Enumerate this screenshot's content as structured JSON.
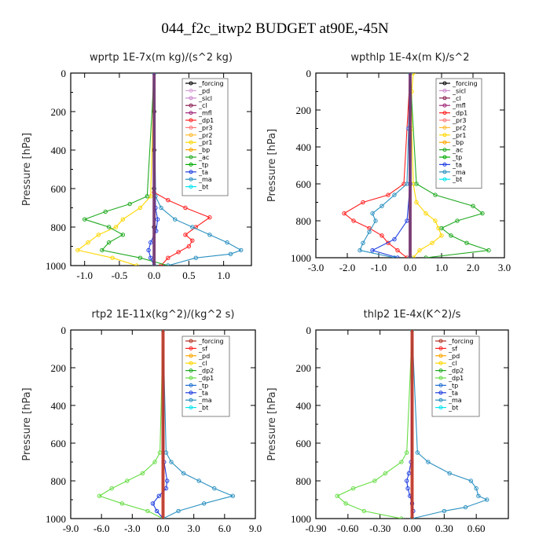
{
  "figure_title": "044_f2c_itwp2  BUDGET at90E,-45N",
  "chart_data": [
    {
      "type": "line",
      "title": "wprtp  1E-7x(m kg)/(s^2 kg)",
      "ylabel": "Pressure [hPa]",
      "xlim": [
        -1.2,
        1.4
      ],
      "ylim": [
        0,
        1000
      ],
      "xticks": [
        -1.0,
        -0.5,
        0.0,
        0.5,
        1.0
      ],
      "xtick_labels": [
        "-1.0",
        "-0.5",
        "0.0",
        "0.5",
        "1.0"
      ],
      "yticks": [
        0,
        200,
        400,
        600,
        800,
        1000
      ],
      "ytick_labels": [
        "0",
        "200",
        "400",
        "600",
        "800",
        "1000"
      ],
      "series": [
        {
          "name": "_forcing",
          "color": "#000000",
          "p": [
            0,
            200,
            400,
            600,
            800,
            1000
          ],
          "x": [
            0,
            0,
            0,
            0,
            0,
            0
          ]
        },
        {
          "name": "_pd",
          "color": "#d8a0d8",
          "p": [
            0,
            500,
            1000
          ],
          "x": [
            0,
            0,
            0
          ]
        },
        {
          "name": "_sicl",
          "color": "#cc88cc",
          "p": [
            0,
            500,
            1000
          ],
          "x": [
            0,
            0,
            0
          ]
        },
        {
          "name": "_cl",
          "color": "#8b2252",
          "p": [
            0,
            500,
            1000
          ],
          "x": [
            0,
            0,
            0
          ]
        },
        {
          "name": "_mfl",
          "color": "#a0287a",
          "p": [
            0,
            500,
            1000
          ],
          "x": [
            0,
            0,
            0
          ]
        },
        {
          "name": "_dp1",
          "color": "#ff2020",
          "p": [
            0,
            620,
            660,
            700,
            750,
            800,
            840,
            870,
            900,
            930,
            960,
            1000
          ],
          "x": [
            0,
            0,
            0.2,
            0.45,
            0.8,
            0.6,
            0.45,
            0.55,
            0.5,
            0.35,
            0.2,
            0.1
          ]
        },
        {
          "name": "_pr3",
          "color": "#ff7777",
          "p": [
            0,
            1000
          ],
          "x": [
            0,
            0
          ]
        },
        {
          "name": "_pr2",
          "color": "#ffbb33",
          "p": [
            0,
            1000
          ],
          "x": [
            0,
            0
          ]
        },
        {
          "name": "_pr1",
          "color": "#ffd700",
          "p": [
            0,
            640,
            700,
            760,
            800,
            840,
            880,
            920,
            960,
            1000
          ],
          "x": [
            0,
            -0.05,
            -0.2,
            -0.45,
            -0.55,
            -0.8,
            -0.95,
            -1.1,
            -0.6,
            -0.25
          ]
        },
        {
          "name": "_bp",
          "color": "#ffa500",
          "p": [
            0,
            1000
          ],
          "x": [
            0,
            0
          ]
        },
        {
          "name": "_ac",
          "color": "#22aa22",
          "p": [
            0,
            640,
            680,
            720,
            760,
            800,
            840,
            880,
            920,
            960,
            1000
          ],
          "x": [
            0,
            -0.1,
            -0.35,
            -0.7,
            -1.0,
            -0.65,
            -0.45,
            -0.65,
            -0.75,
            -0.2,
            0.2
          ]
        },
        {
          "name": "_tp",
          "color": "#00aa00",
          "p": [
            0,
            1000
          ],
          "x": [
            0,
            0
          ]
        },
        {
          "name": "_ta",
          "color": "#1f3fe0",
          "p": [
            0,
            700,
            760,
            820,
            880,
            920,
            960,
            1000
          ],
          "x": [
            0,
            0.02,
            0.05,
            0.03,
            -0.05,
            -0.08,
            -0.05,
            0
          ]
        },
        {
          "name": "_ma",
          "color": "#2a90c0",
          "p": [
            0,
            640,
            700,
            760,
            800,
            840,
            880,
            920,
            940,
            960,
            1000
          ],
          "x": [
            0,
            0.02,
            0.1,
            0.3,
            0.55,
            0.8,
            1.05,
            1.25,
            1.1,
            0.6,
            0.2
          ]
        },
        {
          "name": "_bt",
          "color": "#00e5ee",
          "p": [
            0,
            1000
          ],
          "x": [
            0,
            0
          ]
        }
      ]
    },
    {
      "type": "line",
      "title": "wpthlp  1E-4x(m K)/s^2",
      "ylabel": "Pressure [hPa]",
      "xlim": [
        -3.0,
        3.0
      ],
      "ylim": [
        0,
        1000
      ],
      "xticks": [
        -3.0,
        -2.0,
        -1.0,
        0.0,
        1.0,
        2.0,
        3.0
      ],
      "xtick_labels": [
        "-3.0",
        "-2.0",
        "-1.0",
        "0.0",
        "1.0",
        "2.0",
        "3.0"
      ],
      "yticks": [
        0,
        200,
        400,
        600,
        800,
        1000
      ],
      "ytick_labels": [
        "0",
        "200",
        "400",
        "600",
        "800",
        "1000"
      ],
      "series": [
        {
          "name": "_forcing",
          "color": "#000000",
          "p": [
            0,
            1000
          ],
          "x": [
            0,
            0
          ]
        },
        {
          "name": "_sicl",
          "color": "#cc88cc",
          "p": [
            0,
            500,
            1000
          ],
          "x": [
            0,
            0,
            0
          ]
        },
        {
          "name": "_cl",
          "color": "#8b2252",
          "p": [
            0,
            500,
            1000
          ],
          "x": [
            0,
            0,
            0
          ]
        },
        {
          "name": "_mfl",
          "color": "#a0287a",
          "p": [
            0,
            500,
            1000
          ],
          "x": [
            0,
            0,
            0
          ]
        },
        {
          "name": "_dp1",
          "color": "#ff2020",
          "p": [
            0,
            600,
            660,
            700,
            760,
            800,
            840,
            880,
            920,
            960,
            1000
          ],
          "x": [
            0,
            -0.2,
            -0.7,
            -1.5,
            -2.1,
            -1.8,
            -1.3,
            -0.9,
            -0.7,
            -0.4,
            -0.1
          ]
        },
        {
          "name": "_pr3",
          "color": "#ff7777",
          "p": [
            0,
            1000
          ],
          "x": [
            0,
            0
          ]
        },
        {
          "name": "_pr2",
          "color": "#ffbb33",
          "p": [
            0,
            1000
          ],
          "x": [
            0,
            0
          ]
        },
        {
          "name": "_pr1",
          "color": "#ffd700",
          "p": [
            0,
            100,
            300,
            600,
            700,
            760,
            800,
            840,
            880,
            920,
            960,
            1000
          ],
          "x": [
            0.1,
            0.05,
            0.05,
            0.1,
            0.2,
            0.5,
            0.8,
            0.9,
            1.0,
            0.7,
            0.3,
            0.1
          ]
        },
        {
          "name": "_bp",
          "color": "#ffa500",
          "p": [
            0,
            1000
          ],
          "x": [
            0,
            0
          ]
        },
        {
          "name": "_ac",
          "color": "#22aa22",
          "p": [
            0,
            600,
            660,
            720,
            760,
            800,
            840,
            880,
            920,
            960,
            1000
          ],
          "x": [
            0,
            0.2,
            0.8,
            2.0,
            2.3,
            1.5,
            1.0,
            1.3,
            1.8,
            2.5,
            0.5
          ]
        },
        {
          "name": "_tp",
          "color": "#00aa00",
          "p": [
            0,
            1000
          ],
          "x": [
            0,
            0
          ]
        },
        {
          "name": "_ta",
          "color": "#1f3fe0",
          "p": [
            0,
            300,
            600,
            800,
            900,
            960,
            1000
          ],
          "x": [
            0,
            -0.05,
            0,
            -0.1,
            -0.5,
            -1.2,
            -0.4
          ]
        },
        {
          "name": "_ma",
          "color": "#2a90c0",
          "p": [
            0,
            600,
            660,
            720,
            760,
            800,
            860,
            920,
            960,
            1000
          ],
          "x": [
            0,
            -0.1,
            -0.5,
            -0.9,
            -1.2,
            -1.1,
            -1.3,
            -1.5,
            -1.6,
            -0.5
          ]
        },
        {
          "name": "_bt",
          "color": "#00e5ee",
          "p": [
            0,
            1000
          ],
          "x": [
            0,
            0
          ]
        }
      ]
    },
    {
      "type": "line",
      "title": "rtp2  1E-11x(kg^2)/(kg^2 s)",
      "ylabel": "Pressure [hPa]",
      "xlim": [
        -9.0,
        9.0
      ],
      "ylim": [
        0,
        1000
      ],
      "xticks": [
        -9.0,
        -6.0,
        -3.0,
        0.0,
        3.0,
        6.0,
        9.0
      ],
      "xtick_labels": [
        "-9.0",
        "-6.0",
        "-3.0",
        "0.0",
        "3.0",
        "6.0",
        "9.0"
      ],
      "yticks": [
        0,
        200,
        400,
        600,
        800,
        1000
      ],
      "ytick_labels": [
        "0",
        "200",
        "400",
        "600",
        "800",
        "1000"
      ],
      "series": [
        {
          "name": "_forcing",
          "color": "#b03020",
          "p": [
            0,
            1000
          ],
          "x": [
            0,
            0
          ]
        },
        {
          "name": "_sf",
          "color": "#ff2020",
          "p": [
            0,
            1000
          ],
          "x": [
            0,
            0
          ]
        },
        {
          "name": "_pd",
          "color": "#ffa500",
          "p": [
            0,
            1000
          ],
          "x": [
            0,
            0
          ]
        },
        {
          "name": "_cl",
          "color": "#ffd700",
          "p": [
            0,
            1000
          ],
          "x": [
            0,
            0
          ]
        },
        {
          "name": "_dp2",
          "color": "#22aa22",
          "p": [
            0,
            1000
          ],
          "x": [
            0,
            0
          ]
        },
        {
          "name": "_dp1",
          "color": "#66dd44",
          "p": [
            0,
            650,
            700,
            760,
            800,
            840,
            880,
            920,
            960,
            1000
          ],
          "x": [
            0,
            -0.3,
            -0.8,
            -2.0,
            -3.5,
            -5.0,
            -6.2,
            -4.0,
            -1.5,
            0
          ]
        },
        {
          "name": "_tp",
          "color": "#1f6fd0",
          "p": [
            0,
            1000
          ],
          "x": [
            0,
            0
          ]
        },
        {
          "name": "_ta",
          "color": "#1f3fe0",
          "p": [
            0,
            700,
            800,
            840,
            880,
            920,
            960,
            1000
          ],
          "x": [
            0,
            0.1,
            0.4,
            0.3,
            -0.4,
            -1.0,
            -0.6,
            0
          ]
        },
        {
          "name": "_ma",
          "color": "#2a90c0",
          "p": [
            0,
            650,
            700,
            760,
            800,
            840,
            880,
            920,
            960,
            1000
          ],
          "x": [
            0,
            0.3,
            0.8,
            2.0,
            3.5,
            5.0,
            6.8,
            4.0,
            1.5,
            0
          ]
        },
        {
          "name": "_bt",
          "color": "#00e5ee",
          "p": [
            0,
            1000
          ],
          "x": [
            0,
            0
          ]
        }
      ]
    },
    {
      "type": "line",
      "title": "thlp2  1E-4x(K^2)/s",
      "ylabel": "Pressure [hPa]",
      "xlim": [
        -0.9,
        0.9
      ],
      "ylim": [
        0,
        1000
      ],
      "xticks": [
        -0.9,
        -0.6,
        -0.3,
        0.0,
        0.3,
        0.6
      ],
      "xtick_labels": [
        "-0.90",
        "-0.60",
        "-0.30",
        "0.00",
        "0.30",
        "0.60"
      ],
      "yticks": [
        0,
        200,
        400,
        600,
        800,
        1000
      ],
      "ytick_labels": [
        "0",
        "200",
        "400",
        "600",
        "800",
        "1000"
      ],
      "series": [
        {
          "name": "_forcing",
          "color": "#b03020",
          "p": [
            0,
            1000
          ],
          "x": [
            0,
            0
          ]
        },
        {
          "name": "_sf",
          "color": "#ff2020",
          "p": [
            0,
            1000
          ],
          "x": [
            0,
            0
          ]
        },
        {
          "name": "_pd",
          "color": "#ffa500",
          "p": [
            0,
            1000
          ],
          "x": [
            0,
            0
          ]
        },
        {
          "name": "_cl",
          "color": "#ffd700",
          "p": [
            0,
            1000
          ],
          "x": [
            0,
            0
          ]
        },
        {
          "name": "_dp2",
          "color": "#22aa22",
          "p": [
            0,
            1000
          ],
          "x": [
            0,
            0
          ]
        },
        {
          "name": "_dp1",
          "color": "#66dd44",
          "p": [
            0,
            650,
            700,
            760,
            800,
            840,
            880,
            920,
            960,
            1000
          ],
          "x": [
            0,
            -0.05,
            -0.1,
            -0.25,
            -0.35,
            -0.55,
            -0.7,
            -0.62,
            -0.45,
            -0.1
          ]
        },
        {
          "name": "_tp",
          "color": "#1f6fd0",
          "p": [
            0,
            1000
          ],
          "x": [
            0,
            0
          ]
        },
        {
          "name": "_ta",
          "color": "#1f3fe0",
          "p": [
            0,
            700,
            760,
            800,
            840,
            880,
            920,
            960,
            1000
          ],
          "x": [
            0,
            -0.01,
            -0.03,
            -0.05,
            -0.04,
            -0.02,
            0,
            0.01,
            0
          ]
        },
        {
          "name": "_ma",
          "color": "#2a90c0",
          "p": [
            0,
            650,
            700,
            760,
            800,
            840,
            880,
            900,
            940,
            960,
            1000
          ],
          "x": [
            0,
            0.05,
            0.15,
            0.35,
            0.55,
            0.6,
            0.62,
            0.7,
            0.5,
            0.3,
            0
          ]
        },
        {
          "name": "_bt",
          "color": "#00e5ee",
          "p": [
            0,
            1000
          ],
          "x": [
            0,
            0
          ]
        }
      ]
    }
  ]
}
